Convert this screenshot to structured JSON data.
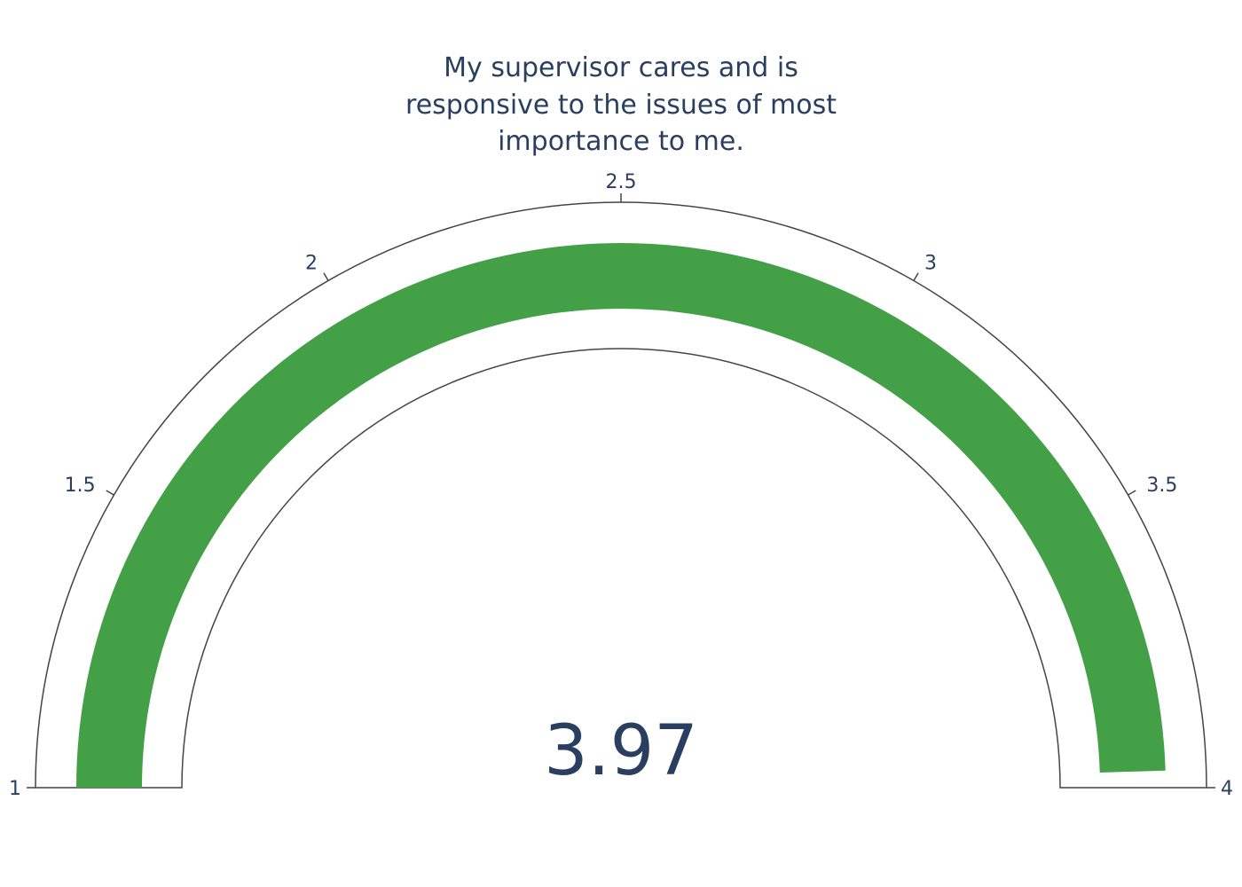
{
  "chart_data": {
    "type": "gauge",
    "title": "My supervisor cares and is responsive to the issues of most importance to me.",
    "title_lines": [
      "My supervisor cares and is",
      "responsive to the issues of most",
      "importance to me."
    ],
    "value": 3.97,
    "value_label": "3.97",
    "range": [
      1,
      4
    ],
    "ticks": [
      {
        "value": 1,
        "label": "1"
      },
      {
        "value": 1.5,
        "label": "1.5"
      },
      {
        "value": 2,
        "label": "2"
      },
      {
        "value": 2.5,
        "label": "2.5"
      },
      {
        "value": 3,
        "label": "3"
      },
      {
        "value": 3.5,
        "label": "3.5"
      },
      {
        "value": 4,
        "label": "4"
      }
    ],
    "colors": {
      "bar": "#43a047",
      "text": "#2a3f5f",
      "outline": "#444444"
    }
  }
}
